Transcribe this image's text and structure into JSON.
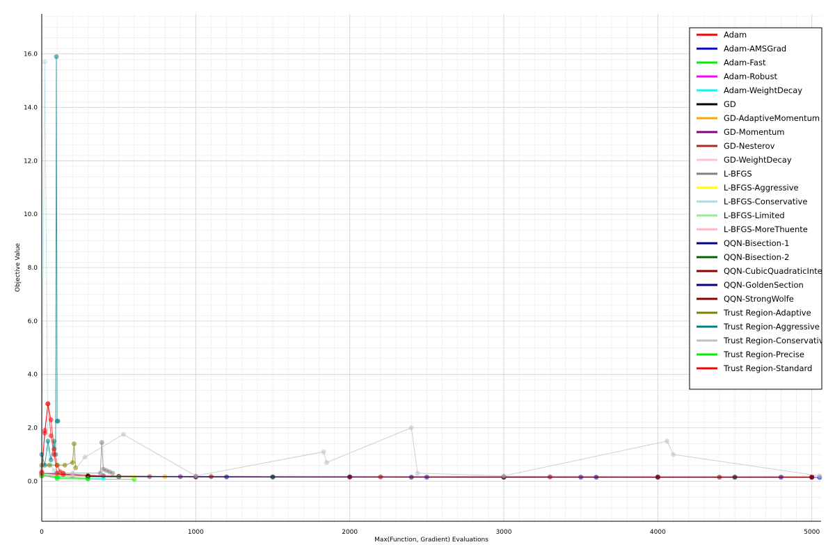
{
  "chart_data": {
    "type": "line",
    "title": "",
    "xlabel": "Max(Function, Gradient) Evaluations",
    "ylabel": "Objective Value",
    "xlim": [
      0,
      5060
    ],
    "ylim": [
      -1.5,
      17.5
    ],
    "x_ticks": [
      0,
      1000,
      2000,
      3000,
      4000,
      5000
    ],
    "y_ticks": [
      0.0,
      2.0,
      4.0,
      6.0,
      8.0,
      10.0,
      12.0,
      14.0,
      16.0
    ],
    "y_tick_labels": [
      "0.0",
      "2.0",
      "4.0",
      "6.0",
      "8.0",
      "10.0",
      "12.0",
      "14.0",
      "16.0"
    ],
    "grid": true,
    "legend_position": "top-right",
    "series": [
      {
        "name": "Adam",
        "color": "#ff0000",
        "x": [
          0,
          20,
          40,
          60,
          80,
          100,
          120,
          140
        ],
        "y": [
          0.35,
          1.8,
          2.9,
          2.3,
          1.2,
          0.6,
          0.35,
          0.3
        ]
      },
      {
        "name": "Adam-AMSGrad",
        "color": "#0000cc",
        "x": [
          500,
          1500,
          2500,
          3500,
          4500,
          5050
        ],
        "y": [
          0.17,
          0.16,
          0.15,
          0.15,
          0.15,
          0.14
        ]
      },
      {
        "name": "Adam-Fast",
        "color": "#00ee00",
        "x": [
          0,
          100,
          300,
          600
        ],
        "y": [
          0.25,
          0.1,
          0.08,
          0.07
        ]
      },
      {
        "name": "Adam-Robust",
        "color": "#ff00ff",
        "x": [
          0,
          200,
          500
        ],
        "y": [
          0.3,
          0.2,
          0.15
        ]
      },
      {
        "name": "Adam-WeightDecay",
        "color": "#00ffee",
        "x": [
          0,
          100,
          400
        ],
        "y": [
          0.3,
          0.15,
          0.1
        ]
      },
      {
        "name": "GD",
        "color": "#000000",
        "x": [
          0,
          500,
          1000,
          2000,
          3000,
          4000,
          5000
        ],
        "y": [
          0.2,
          0.18,
          0.17,
          0.16,
          0.16,
          0.16,
          0.16
        ]
      },
      {
        "name": "GD-AdaptiveMomentum",
        "color": "#ffa500",
        "x": [
          0,
          300,
          800
        ],
        "y": [
          0.3,
          0.2,
          0.17
        ]
      },
      {
        "name": "GD-Momentum",
        "color": "#800080",
        "x": [
          0,
          400,
          900
        ],
        "y": [
          0.3,
          0.2,
          0.17
        ]
      },
      {
        "name": "GD-Nesterov",
        "color": "#a52a2a",
        "x": [
          0,
          300,
          700
        ],
        "y": [
          0.3,
          0.2,
          0.17
        ]
      },
      {
        "name": "GD-WeightDecay",
        "color": "#ffc0cb",
        "x": [
          0,
          1000,
          2000,
          3000,
          4000,
          5000
        ],
        "y": [
          0.2,
          0.17,
          0.16,
          0.15,
          0.15,
          0.15
        ]
      },
      {
        "name": "L-BFGS",
        "color": "#808080",
        "x": [
          0,
          380,
          390,
          400,
          420,
          440,
          460
        ],
        "y": [
          0.3,
          0.3,
          1.45,
          0.45,
          0.4,
          0.35,
          0.3
        ]
      },
      {
        "name": "L-BFGS-Aggressive",
        "color": "#ffff00",
        "x": [
          0,
          300,
          600
        ],
        "y": [
          0.25,
          0.18,
          0.16
        ]
      },
      {
        "name": "L-BFGS-Conservative",
        "color": "#add8e6",
        "x": [
          0,
          20,
          40,
          60,
          80,
          100
        ],
        "y": [
          0.5,
          15.7,
          1.2,
          0.6,
          0.4,
          0.3
        ]
      },
      {
        "name": "L-BFGS-Limited",
        "color": "#90ee90",
        "x": [
          0,
          200,
          500
        ],
        "y": [
          0.25,
          0.18,
          0.15
        ]
      },
      {
        "name": "L-BFGS-MoreThuente",
        "color": "#ffb6c1",
        "x": [
          0,
          1000,
          2000,
          3000,
          4000,
          5000
        ],
        "y": [
          0.2,
          0.17,
          0.16,
          0.16,
          0.15,
          0.15
        ]
      },
      {
        "name": "QQN-Bisection-1",
        "color": "#000080",
        "x": [
          300,
          1000,
          2000,
          3000,
          4000,
          5000
        ],
        "y": [
          0.18,
          0.16,
          0.16,
          0.15,
          0.15,
          0.15
        ]
      },
      {
        "name": "QQN-Bisection-2",
        "color": "#006400",
        "x": [
          300,
          1500,
          3000,
          4500
        ],
        "y": [
          0.17,
          0.16,
          0.15,
          0.15
        ]
      },
      {
        "name": "QQN-CubicQuadraticInterpolation",
        "color": "#8b0000",
        "x": [
          300,
          1000,
          2000,
          3000,
          4000,
          5000
        ],
        "y": [
          0.19,
          0.17,
          0.16,
          0.16,
          0.15,
          0.15
        ]
      },
      {
        "name": "QQN-GoldenSection",
        "color": "#000080",
        "x": [
          300,
          1200,
          2400,
          3600,
          4800
        ],
        "y": [
          0.18,
          0.16,
          0.15,
          0.15,
          0.15
        ]
      },
      {
        "name": "QQN-StrongWolfe",
        "color": "#8b0000",
        "x": [
          300,
          1100,
          2200,
          3300,
          4400,
          5000
        ],
        "y": [
          0.19,
          0.17,
          0.16,
          0.16,
          0.15,
          0.15
        ]
      },
      {
        "name": "Trust Region-Adaptive",
        "color": "#808000",
        "x": [
          0,
          50,
          100,
          150,
          200,
          210,
          220
        ],
        "y": [
          0.6,
          0.6,
          0.6,
          0.6,
          0.7,
          1.4,
          0.5
        ]
      },
      {
        "name": "Trust Region-Aggressive",
        "color": "#008080",
        "x": [
          0,
          20,
          40,
          60,
          80,
          90,
          95,
          100,
          105
        ],
        "y": [
          1.0,
          0.6,
          1.5,
          0.8,
          1.5,
          1.0,
          15.9,
          2.25,
          2.25
        ]
      },
      {
        "name": "Trust Region-Conservative",
        "color": "#c0c0c0",
        "x": [
          0,
          200,
          280,
          530,
          1000,
          1830,
          1850,
          2400,
          2440,
          3000,
          4060,
          4100,
          5050
        ],
        "y": [
          0.3,
          0.3,
          0.9,
          1.75,
          0.2,
          1.1,
          0.7,
          2.0,
          0.3,
          0.2,
          1.5,
          1.0,
          0.2
        ]
      },
      {
        "name": "Trust Region-Precise",
        "color": "#00ee00",
        "x": [
          0,
          100,
          300
        ],
        "y": [
          0.2,
          0.15,
          0.1
        ]
      },
      {
        "name": "Trust Region-Standard",
        "color": "#ff0000",
        "x": [
          0,
          20,
          40,
          60,
          80,
          100,
          140
        ],
        "y": [
          0.3,
          1.9,
          2.9,
          1.7,
          1.0,
          0.3,
          0.25
        ]
      }
    ]
  }
}
